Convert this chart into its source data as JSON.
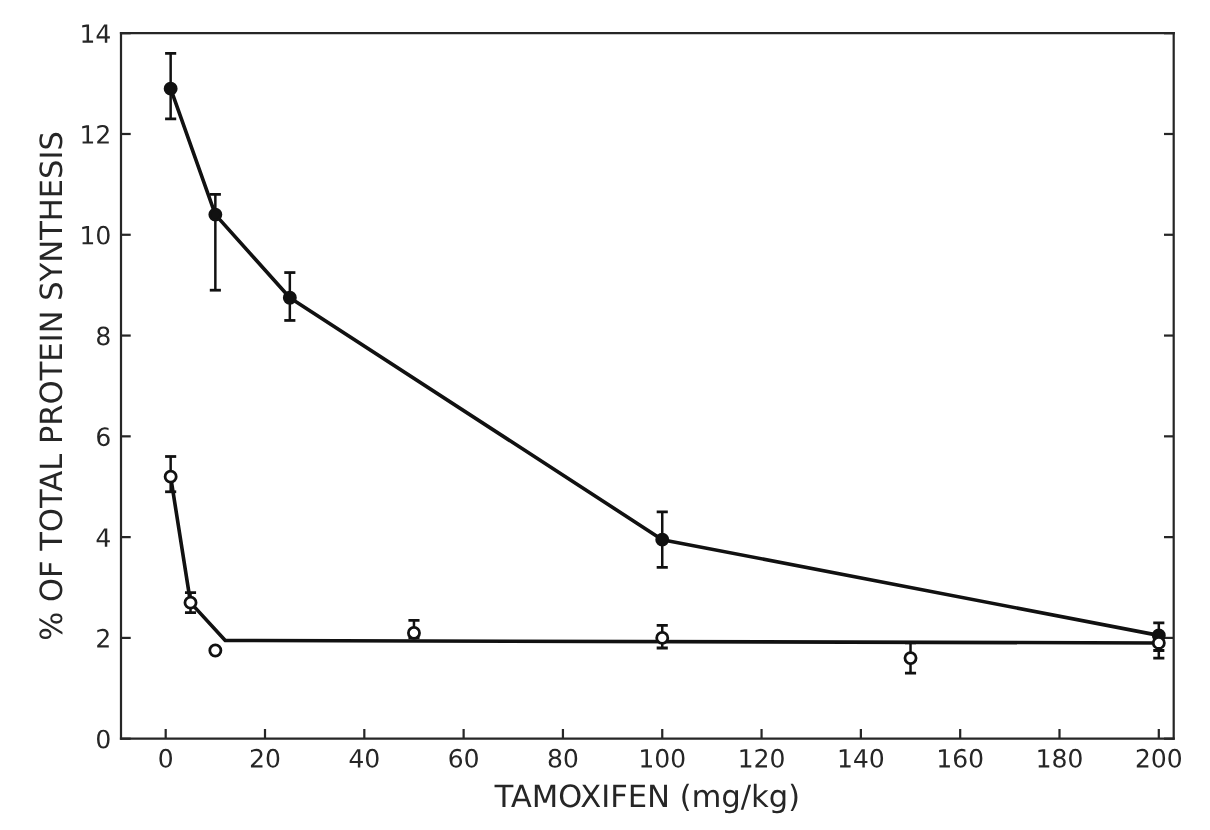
{
  "chart_data": {
    "type": "line",
    "xlabel": "TAMOXIFEN (mg/kg)",
    "ylabel": "% OF TOTAL PROTEIN SYNTHESIS",
    "xlim": [
      -9,
      203
    ],
    "ylim": [
      0,
      14
    ],
    "xticks": [
      0,
      20,
      40,
      60,
      80,
      100,
      120,
      140,
      160,
      180,
      200
    ],
    "yticks": [
      0,
      2,
      4,
      6,
      8,
      10,
      12,
      14
    ],
    "grid": false,
    "legend": false,
    "series": [
      {
        "color": "#111111",
        "marker": "circle",
        "x": [
          1,
          10,
          25,
          100,
          200
        ],
        "values": [
          12.9,
          10.4,
          8.75,
          3.95,
          2.05
        ],
        "errors": [
          [
            12.3,
            13.6
          ],
          [
            8.9,
            10.8
          ],
          [
            8.3,
            9.25
          ],
          [
            3.4,
            4.5
          ],
          [
            1.75,
            2.3
          ]
        ]
      },
      {
        "type": "scatter",
        "color": "#111111",
        "marker": "circle",
        "x": [
          1,
          5,
          10,
          50,
          100,
          150,
          200
        ],
        "values": [
          5.2,
          2.7,
          1.75,
          2.1,
          2.0,
          1.6,
          1.9
        ],
        "errors": [
          [
            4.9,
            5.6
          ],
          [
            2.5,
            2.9
          ],
          null,
          [
            2.0,
            2.35
          ],
          [
            1.8,
            2.25
          ],
          [
            1.3,
            1.9
          ],
          [
            1.6,
            2.0
          ]
        ]
      },
      {
        "type": "line",
        "color": "#111111",
        "marker": "none",
        "x": [
          1,
          5,
          12,
          200
        ],
        "values": [
          5.2,
          2.7,
          1.95,
          1.9
        ]
      }
    ]
  }
}
